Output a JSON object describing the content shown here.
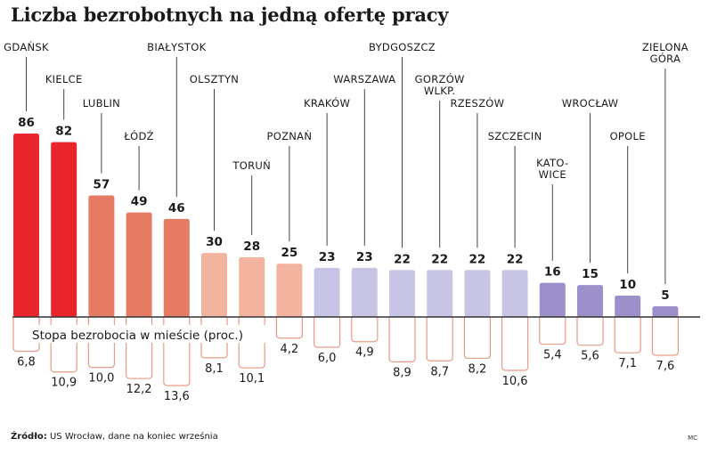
{
  "title": "Liczba bezrobotnych na jedną ofertę pracy",
  "source_label": "Źródło:",
  "source_text": "US Wrocław, dane na koniec września",
  "credit": "MC",
  "colors": {
    "red": "#e8262c",
    "salmon": "#e67b63",
    "peach": "#f2b49e",
    "lavender": "#c7c4e6",
    "purple": "#9d8fca",
    "outline_rate": "#ea9a88",
    "baseline": "#333333",
    "leader": "#444444"
  },
  "chart_data": {
    "type": "bar",
    "title": "Liczba bezrobotnych na jedną ofertę pracy",
    "subtitle": "Stopa bezrobocia w mieście (proc.)",
    "xlabel": "",
    "ylabel": "",
    "ylim": [
      0,
      90
    ],
    "categories": [
      [
        "GDAŃSK"
      ],
      [
        "KIELCE"
      ],
      [
        "LUBLIN"
      ],
      [
        "ŁÓDŹ"
      ],
      [
        "BIAŁYSTOK"
      ],
      [
        "OLSZTYN"
      ],
      [
        "TORUŃ"
      ],
      [
        "POZNAŃ"
      ],
      [
        "KRAKÓW"
      ],
      [
        "WARSZAWA"
      ],
      [
        "BYDGOSZCZ"
      ],
      [
        "GORZÓW",
        "WLKP."
      ],
      [
        "RZESZÓW"
      ],
      [
        "SZCZECIN"
      ],
      [
        "KATO-",
        "WICE"
      ],
      [
        "WROCŁAW"
      ],
      [
        "OPOLE"
      ],
      [
        "ZIELONA",
        "GÓRA"
      ]
    ],
    "series": [
      {
        "name": "Liczba bezrobotnych na jedną ofertę pracy",
        "values": [
          86,
          82,
          57,
          49,
          46,
          30,
          28,
          25,
          23,
          23,
          22,
          22,
          22,
          22,
          16,
          15,
          10,
          5
        ],
        "labels": [
          "86",
          "82",
          "57",
          "49",
          "46",
          "30",
          "28",
          "25",
          "23",
          "23",
          "22",
          "22",
          "22",
          "22",
          "16",
          "15",
          "10",
          "5"
        ],
        "color_groups": [
          "red",
          "red",
          "salmon",
          "salmon",
          "salmon",
          "peach",
          "peach",
          "peach",
          "lavender",
          "lavender",
          "lavender",
          "lavender",
          "lavender",
          "lavender",
          "purple",
          "purple",
          "purple",
          "purple"
        ]
      },
      {
        "name": "Stopa bezrobocia w mieście (proc.)",
        "values": [
          6.8,
          10.9,
          10.0,
          12.2,
          13.6,
          8.1,
          10.1,
          4.2,
          6.0,
          4.9,
          8.9,
          8.7,
          8.2,
          10.6,
          5.4,
          5.6,
          7.1,
          7.6
        ],
        "labels": [
          "6,8",
          "10,9",
          "10,0",
          "12,2",
          "13,6",
          "8,1",
          "10,1",
          "4,2",
          "6,0",
          "4,9",
          "8,9",
          "8,7",
          "8,2",
          "10,6",
          "5,4",
          "5,6",
          "7,1",
          "7,6"
        ]
      }
    ]
  }
}
